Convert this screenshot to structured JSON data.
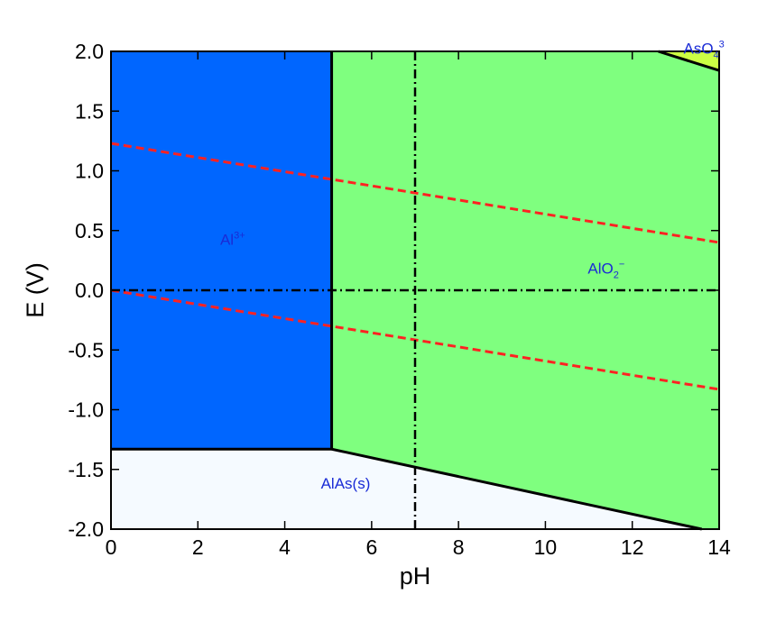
{
  "chart_data": {
    "type": "area",
    "title": "",
    "xlabel": "pH",
    "ylabel": "E (V)",
    "xlim": [
      0,
      14
    ],
    "ylim": [
      -2.0,
      2.0
    ],
    "x_ticks": [
      0,
      2,
      4,
      6,
      8,
      10,
      12,
      14
    ],
    "x_tick_labels": [
      "0",
      "2",
      "4",
      "6",
      "8",
      "10",
      "12",
      "14"
    ],
    "y_ticks": [
      2.0,
      1.5,
      1.0,
      0.5,
      0.0,
      -0.5,
      -1.0,
      -1.5,
      -2.0
    ],
    "y_tick_labels": [
      "2.0",
      "1.5",
      "1.0",
      "0.5",
      "0.0",
      "-0.5",
      "-1.0",
      "-1.5",
      "-2.0"
    ],
    "grid": false,
    "regions": [
      {
        "label": "Al",
        "superscript": "3+",
        "color": "#0066ff",
        "polygon": [
          [
            0,
            2.0
          ],
          [
            5.08,
            2.0
          ],
          [
            5.08,
            -1.33
          ],
          [
            0,
            -1.33
          ]
        ],
        "label_pos": [
          2.8,
          0.38
        ]
      },
      {
        "label": "AlO",
        "subscript": "2",
        "superscript": "−",
        "color": "#7fff7f",
        "polygon": [
          [
            5.08,
            2.0
          ],
          [
            12.6,
            2.0
          ],
          [
            14.0,
            1.84
          ],
          [
            14.0,
            -2.0
          ],
          [
            13.6,
            -2.0
          ],
          [
            5.08,
            -1.33
          ]
        ],
        "label_pos": [
          11.4,
          0.14
        ]
      },
      {
        "label": "AlAs(s)",
        "color": "#f5faff",
        "polygon": [
          [
            0,
            -1.33
          ],
          [
            5.08,
            -1.33
          ],
          [
            13.6,
            -2.0
          ],
          [
            0,
            -2.0
          ]
        ],
        "label_pos": [
          5.4,
          -1.66
        ]
      },
      {
        "label": "AsO",
        "subscript": "4",
        "superscript": "3",
        "color": "#ccff44",
        "polygon": [
          [
            12.6,
            2.0
          ],
          [
            14.0,
            2.0
          ],
          [
            14.0,
            1.84
          ]
        ],
        "label_pos": [
          13.65,
          1.98
        ]
      }
    ],
    "boundaries": [
      {
        "points": [
          [
            5.08,
            2.0
          ],
          [
            5.08,
            -1.33
          ]
        ]
      },
      {
        "points": [
          [
            0,
            -1.33
          ],
          [
            5.08,
            -1.33
          ]
        ]
      },
      {
        "points": [
          [
            5.08,
            -1.33
          ],
          [
            13.6,
            -2.0
          ]
        ]
      },
      {
        "points": [
          [
            12.6,
            2.0
          ],
          [
            14.0,
            1.84
          ]
        ]
      }
    ],
    "reference_lines": [
      {
        "style": "dashed",
        "color": "#ff2222",
        "points": [
          [
            0,
            1.23
          ],
          [
            14,
            0.4
          ]
        ]
      },
      {
        "style": "dashed",
        "color": "#ff2222",
        "points": [
          [
            0,
            0.0
          ],
          [
            14,
            -0.83
          ]
        ]
      },
      {
        "style": "dashdot",
        "color": "#000000",
        "points": [
          [
            0,
            0.0
          ],
          [
            14,
            0.0
          ]
        ]
      },
      {
        "style": "dashdot",
        "color": "#000000",
        "points": [
          [
            7,
            -2.0
          ],
          [
            7,
            2.0
          ]
        ]
      }
    ]
  }
}
